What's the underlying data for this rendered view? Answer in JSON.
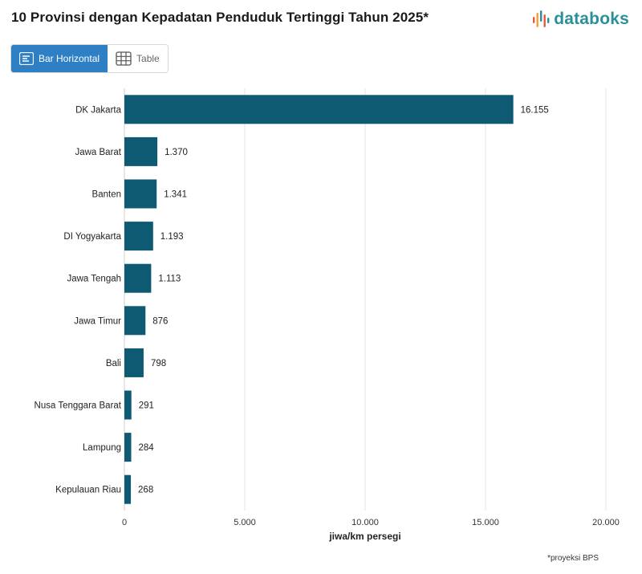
{
  "header": {
    "title": "10 Provinsi dengan Kepadatan Penduduk Tertinggi Tahun 2025*",
    "logo_text": "databoks",
    "logo_icon": "databoks-logo-icon"
  },
  "toggle": {
    "bar_label": "Bar Horizontal",
    "bar_icon": "bar-list-icon",
    "table_label": "Table",
    "table_icon": "table-grid-icon"
  },
  "colors": {
    "bar": "#0e5a72",
    "accent": "#2f7fc4",
    "grid": "#e4e4e4"
  },
  "chart_data": {
    "type": "bar",
    "orientation": "horizontal",
    "categories": [
      "DK Jakarta",
      "Jawa Barat",
      "Banten",
      "DI Yogyakarta",
      "Jawa Tengah",
      "Jawa Timur",
      "Bali",
      "Nusa Tenggara Barat",
      "Lampung",
      "Kepulauan Riau"
    ],
    "values": [
      16155,
      1370,
      1341,
      1193,
      1113,
      876,
      798,
      291,
      284,
      268
    ],
    "value_labels": [
      "16.155",
      "1.370",
      "1.341",
      "1.193",
      "1.113",
      "876",
      "798",
      "291",
      "284",
      "268"
    ],
    "xlim": [
      0,
      20000
    ],
    "xticks": [
      0,
      5000,
      10000,
      15000,
      20000
    ],
    "xtick_labels": [
      "0",
      "5.000",
      "10.000",
      "15.000",
      "20.000"
    ],
    "xlabel": "jiwa/km persegi",
    "grid": true
  },
  "footnote": "*proyeksi BPS"
}
